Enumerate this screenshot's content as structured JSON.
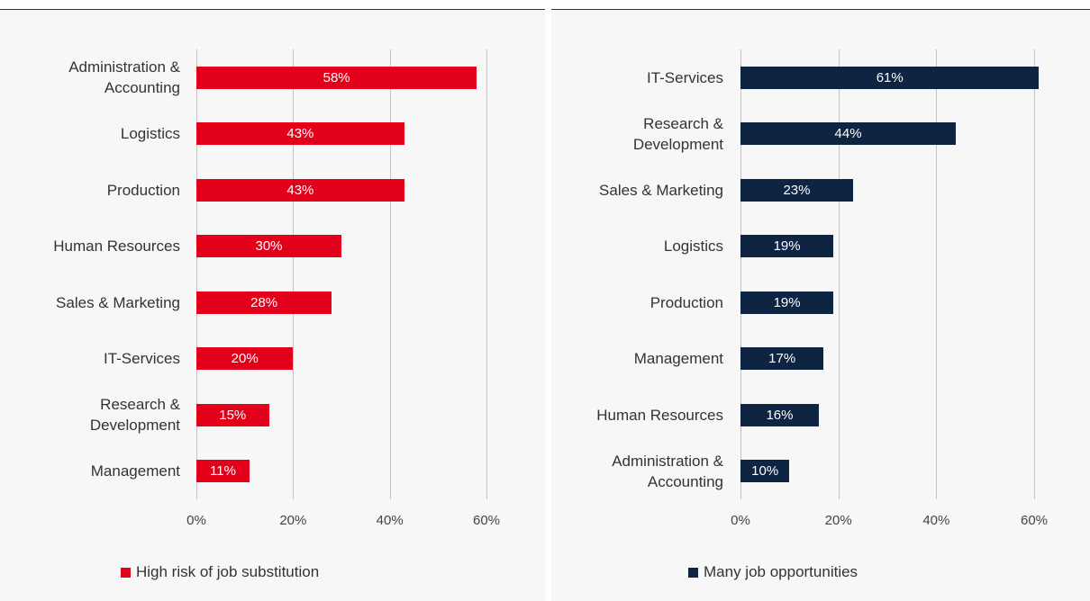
{
  "chart_data": [
    {
      "type": "bar",
      "orientation": "horizontal",
      "categories": [
        "Administration & Accounting",
        "Logistics",
        "Production",
        "Human Resources",
        "Sales & Marketing",
        "IT-Services",
        "Research & Development",
        "Management"
      ],
      "series": [
        {
          "name": "High risk of job substitution",
          "color": "#e2001a",
          "values": [
            58,
            43,
            43,
            30,
            28,
            20,
            15,
            11
          ],
          "value_labels": [
            "58%",
            "43%",
            "43%",
            "30%",
            "28%",
            "20%",
            "15%",
            "11%"
          ]
        }
      ],
      "xlim": [
        0,
        60
      ],
      "xticks": [
        {
          "value": 0,
          "label": "0%"
        },
        {
          "value": 20,
          "label": "20%"
        },
        {
          "value": 40,
          "label": "40%"
        },
        {
          "value": 60,
          "label": "60%"
        }
      ],
      "grid": true,
      "legend": "bottom-left"
    },
    {
      "type": "bar",
      "orientation": "horizontal",
      "categories": [
        "IT-Services",
        "Research & Development",
        "Sales & Marketing",
        "Logistics",
        "Production",
        "Management",
        "Human Resources",
        "Administration & Accounting"
      ],
      "series": [
        {
          "name": "Many job opportunities",
          "color": "#0d2442",
          "values": [
            61,
            44,
            23,
            19,
            19,
            17,
            16,
            10
          ],
          "value_labels": [
            "61%",
            "44%",
            "23%",
            "19%",
            "19%",
            "17%",
            "16%",
            "10%"
          ]
        }
      ],
      "xlim": [
        0,
        60
      ],
      "xticks": [
        {
          "value": 0,
          "label": "0%"
        },
        {
          "value": 20,
          "label": "20%"
        },
        {
          "value": 40,
          "label": "40%"
        },
        {
          "value": 60,
          "label": "60%"
        }
      ],
      "grid": true,
      "legend": "bottom-left"
    }
  ]
}
